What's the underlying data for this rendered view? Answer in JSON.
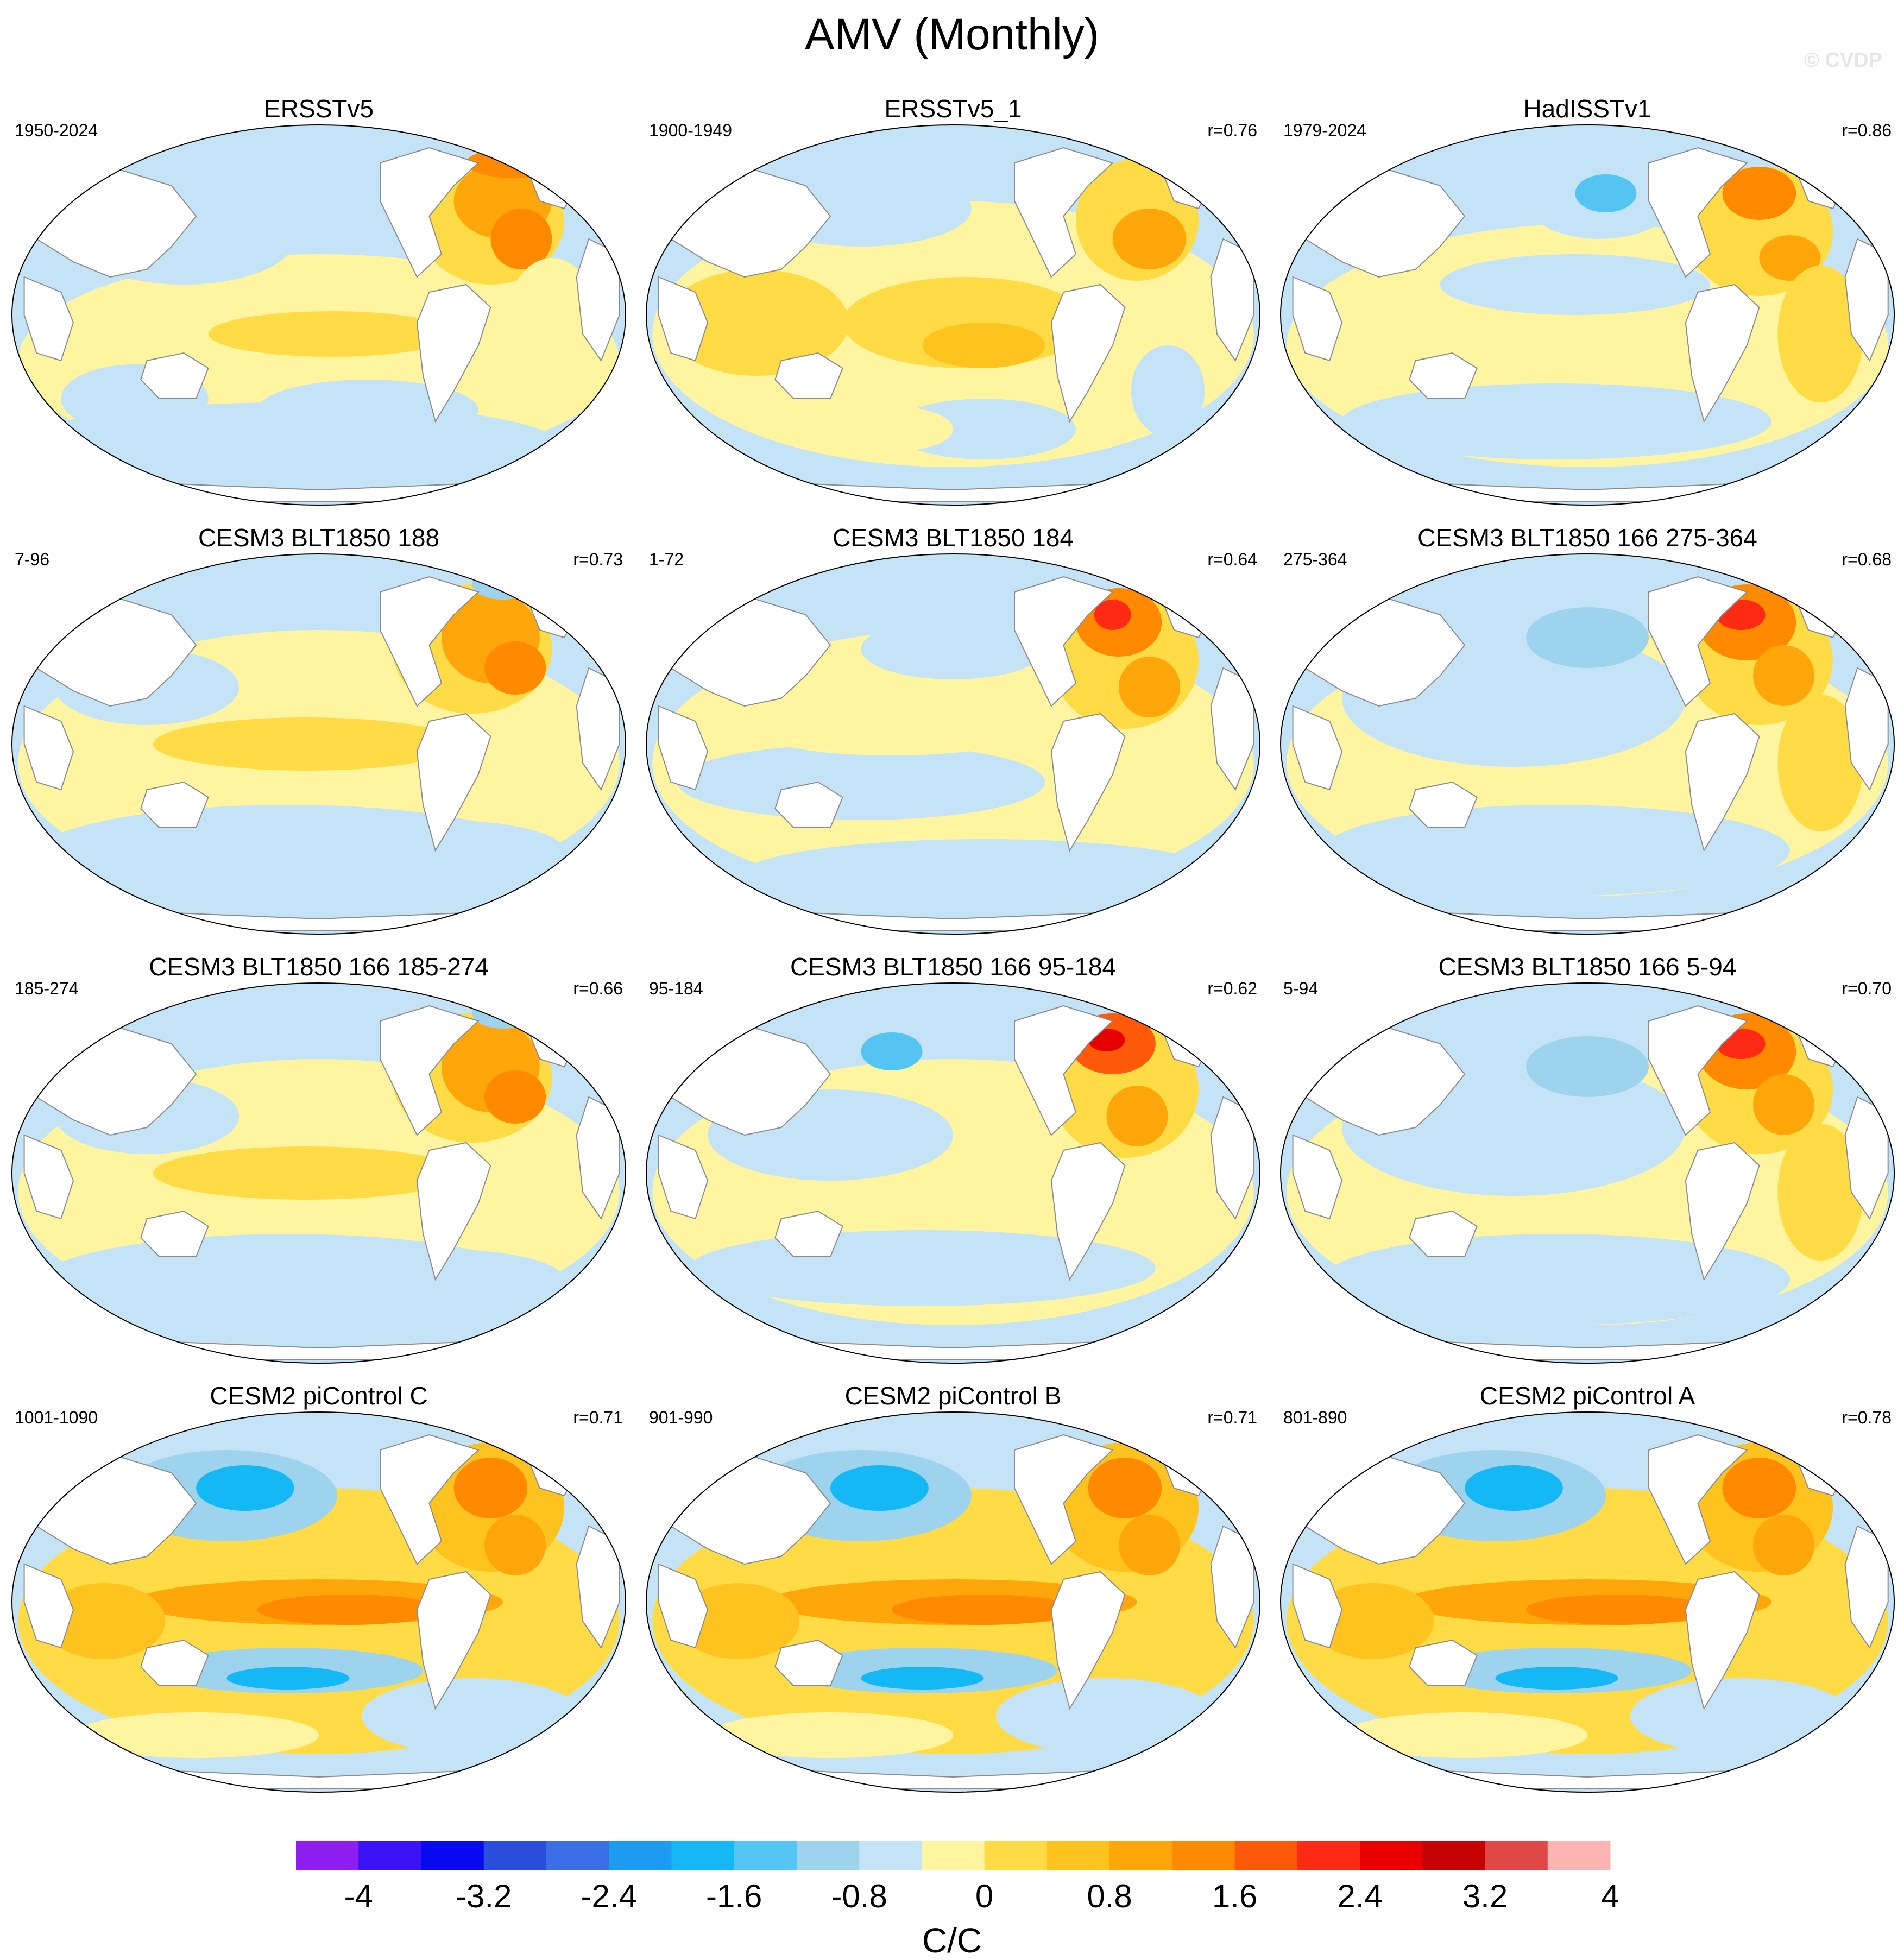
{
  "figure": {
    "title": "AMV (Monthly)",
    "watermark": "© CVDP"
  },
  "colors": {
    "palette": [
      "#8f1ff0",
      "#3b14f5",
      "#0a0af0",
      "#2a4edb",
      "#3b6ee6",
      "#1c9bf0",
      "#14b8f5",
      "#54c4f2",
      "#9ed3ee",
      "#c4e3f6",
      "#fff5a0",
      "#ffdc46",
      "#ffc31f",
      "#ffa70a",
      "#ff8a00",
      "#ff5a0a",
      "#ff2a14",
      "#e60000",
      "#c40000",
      "#e04848",
      "#ffb4b4"
    ],
    "land": "#ffffff",
    "coast": "#8c8c8c"
  },
  "panels": [
    {
      "title": "ERSSTv5",
      "period": "1950-2024",
      "corr": "",
      "pattern": "obs_a"
    },
    {
      "title": "ERSSTv5_1",
      "period": "1900-1949",
      "corr": "r=0.76",
      "pattern": "obs_b"
    },
    {
      "title": "HadISSTv1",
      "period": "1979-2024",
      "corr": "r=0.86",
      "pattern": "obs_c"
    },
    {
      "title": "CESM3 BLT1850 188",
      "period": "7-96",
      "corr": "r=0.73",
      "pattern": "mod_a"
    },
    {
      "title": "CESM3 BLT1850 184",
      "period": "1-72",
      "corr": "r=0.64",
      "pattern": "mod_b"
    },
    {
      "title": "CESM3 BLT1850 166 275-364",
      "period": "275-364",
      "corr": "r=0.68",
      "pattern": "mod_c"
    },
    {
      "title": "CESM3 BLT1850 166 185-274",
      "period": "185-274",
      "corr": "r=0.66",
      "pattern": "mod_a"
    },
    {
      "title": "CESM3 BLT1850 166 95-184",
      "period": "95-184",
      "corr": "r=0.62",
      "pattern": "mod_d"
    },
    {
      "title": "CESM3 BLT1850 166 5-94",
      "period": "5-94",
      "corr": "r=0.70",
      "pattern": "mod_c"
    },
    {
      "title": "CESM2 piControl C",
      "period": "1001-1090",
      "corr": "r=0.71",
      "pattern": "pic"
    },
    {
      "title": "CESM2 piControl B",
      "period": "901-990",
      "corr": "r=0.71",
      "pattern": "pic"
    },
    {
      "title": "CESM2 piControl A",
      "period": "801-890",
      "corr": "r=0.78",
      "pattern": "pic"
    }
  ],
  "colorbar": {
    "tick_labels": [
      "-4",
      "-3.2",
      "-2.4",
      "-1.6",
      "-0.8",
      "0",
      "0.8",
      "1.6",
      "2.4",
      "3.2",
      "4"
    ],
    "label": "C/C"
  }
}
